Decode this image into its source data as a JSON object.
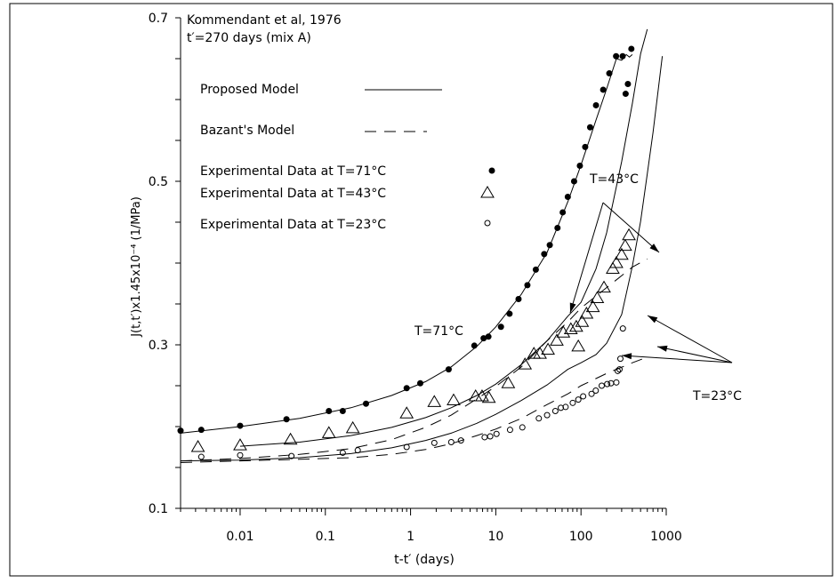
{
  "chart_data": {
    "type": "scatter",
    "title": "Kommendant et al, 1976",
    "subtitle": "t′=270 days (mix A)",
    "xlabel": "t-t′ (days)",
    "ylabel": "J(t,t′)x1.45x10⁻⁴ (1/MPa)",
    "x_scale": "log",
    "xlim": [
      0.002,
      1000
    ],
    "ylim": [
      0.1,
      0.7
    ],
    "x_ticks": [
      0.01,
      0.1,
      1,
      10,
      100,
      1000
    ],
    "x_tick_labels": [
      "0.01",
      "0.1",
      "1",
      "10",
      "100",
      "1000"
    ],
    "y_ticks": [
      0.1,
      0.3,
      0.5,
      0.7
    ],
    "y_tick_labels": [
      "0.1",
      "0.3",
      "0.5",
      "0.7"
    ],
    "grid": false,
    "legend": {
      "placement": "top-left",
      "entries": [
        {
          "label": "Proposed Model",
          "symbol": "solid-line"
        },
        {
          "label": "Bazant's Model",
          "symbol": "dashed-line"
        },
        {
          "label": "Experimental Data at T=71°C",
          "symbol": "filled-circle"
        },
        {
          "label": "Experimental Data at T=43°C",
          "symbol": "triangle"
        },
        {
          "label": "Experimental Data at T=23°C",
          "symbol": "open-circle"
        }
      ]
    },
    "annotations": [
      {
        "text": "T=71°C"
      },
      {
        "text": "T=43°C"
      },
      {
        "text": "T=23°C"
      }
    ],
    "series": [
      {
        "name": "Experimental Data at T=71°C",
        "marker": "filled-circle",
        "x": [
          0.002,
          0.0035,
          0.01,
          0.035,
          0.11,
          0.16,
          0.3,
          0.9,
          1.3,
          2.8,
          5.6,
          7.2,
          8.2,
          11.5,
          14.5,
          18.5,
          23.5,
          29.5,
          37,
          43,
          53,
          61,
          70,
          83,
          97,
          112,
          128,
          150,
          182,
          215,
          258,
          308,
          334,
          355,
          390
        ],
        "y": [
          0.195,
          0.196,
          0.201,
          0.209,
          0.219,
          0.219,
          0.228,
          0.247,
          0.253,
          0.27,
          0.299,
          0.308,
          0.31,
          0.322,
          0.338,
          0.356,
          0.373,
          0.392,
          0.411,
          0.422,
          0.443,
          0.462,
          0.481,
          0.5,
          0.519,
          0.542,
          0.566,
          0.593,
          0.612,
          0.632,
          0.653,
          0.653,
          0.607,
          0.619,
          0.662
        ]
      },
      {
        "name": "Experimental Data at T=43°C",
        "marker": "triangle",
        "x": [
          0.0032,
          0.01,
          0.039,
          0.11,
          0.21,
          0.9,
          1.9,
          3.2,
          5.8,
          6.9,
          8.3,
          14,
          22,
          28,
          33,
          41,
          52,
          62,
          76,
          88,
          93,
          103,
          116,
          138,
          155,
          186,
          236,
          260,
          300,
          330,
          365
        ],
        "y": [
          0.175,
          0.177,
          0.184,
          0.192,
          0.198,
          0.216,
          0.23,
          0.232,
          0.237,
          0.237,
          0.235,
          0.253,
          0.276,
          0.289,
          0.289,
          0.294,
          0.305,
          0.315,
          0.319,
          0.322,
          0.298,
          0.328,
          0.338,
          0.346,
          0.357,
          0.37,
          0.393,
          0.4,
          0.41,
          0.421,
          0.434
        ]
      },
      {
        "name": "Experimental Data at T=23°C",
        "marker": "open-circle",
        "x": [
          0.0035,
          0.01,
          0.04,
          0.16,
          0.24,
          0.9,
          1.9,
          3.0,
          3.9,
          7.4,
          8.6,
          10.2,
          14.7,
          20.5,
          32,
          40,
          50,
          58,
          66,
          80,
          93,
          106,
          133,
          149,
          175,
          203,
          225,
          260,
          270,
          283,
          290,
          310
        ],
        "y": [
          0.163,
          0.165,
          0.164,
          0.168,
          0.171,
          0.175,
          0.18,
          0.181,
          0.183,
          0.187,
          0.188,
          0.191,
          0.196,
          0.199,
          0.21,
          0.214,
          0.219,
          0.223,
          0.224,
          0.229,
          0.233,
          0.237,
          0.24,
          0.244,
          0.25,
          0.252,
          0.253,
          0.254,
          0.268,
          0.27,
          0.283,
          0.32
        ]
      },
      {
        "name": "Proposed Model",
        "line": "solid",
        "temperature": "71°C",
        "x": [
          0.002,
          0.01,
          0.05,
          0.2,
          0.6,
          1.5,
          3,
          6,
          10,
          20,
          40,
          70,
          100,
          150,
          200,
          260,
          300,
          340,
          370,
          400
        ],
        "y": [
          0.192,
          0.2,
          0.21,
          0.223,
          0.238,
          0.255,
          0.273,
          0.298,
          0.322,
          0.362,
          0.413,
          0.475,
          0.52,
          0.575,
          0.613,
          0.65,
          0.648,
          0.655,
          0.652,
          0.655
        ]
      },
      {
        "name": "Proposed Model",
        "line": "solid",
        "temperature": "43°C",
        "x": [
          0.01,
          0.05,
          0.2,
          0.6,
          1.5,
          3,
          6,
          10,
          20,
          40,
          70,
          100,
          150,
          200,
          300,
          400,
          500,
          600
        ],
        "y": [
          0.176,
          0.181,
          0.189,
          0.199,
          0.211,
          0.223,
          0.238,
          0.252,
          0.276,
          0.305,
          0.335,
          0.352,
          0.393,
          0.437,
          0.524,
          0.595,
          0.656,
          0.686
        ]
      },
      {
        "name": "Proposed Model",
        "line": "solid",
        "temperature": "23°C",
        "x": [
          0.002,
          0.01,
          0.05,
          0.2,
          0.6,
          1.5,
          3,
          6,
          10,
          20,
          40,
          70,
          100,
          150,
          200,
          300,
          400,
          500,
          600,
          700,
          900
        ],
        "y": [
          0.158,
          0.159,
          0.162,
          0.167,
          0.174,
          0.183,
          0.192,
          0.204,
          0.215,
          0.232,
          0.251,
          0.27,
          0.278,
          0.288,
          0.302,
          0.337,
          0.396,
          0.451,
          0.509,
          0.56,
          0.653
        ]
      },
      {
        "name": "Bazant's Model",
        "line": "dashed",
        "temperature": "43°C",
        "x": [
          0.002,
          0.01,
          0.05,
          0.2,
          0.6,
          1.5,
          3,
          6,
          10,
          20,
          40,
          70,
          100,
          200,
          400,
          600
        ],
        "y": [
          0.158,
          0.161,
          0.166,
          0.173,
          0.184,
          0.199,
          0.214,
          0.234,
          0.249,
          0.273,
          0.305,
          0.328,
          0.345,
          0.37,
          0.395,
          0.405
        ]
      },
      {
        "name": "Bazant's Model",
        "line": "dashed",
        "temperature": "23°C",
        "x": [
          0.002,
          0.01,
          0.05,
          0.2,
          0.6,
          1.5,
          3,
          6,
          10,
          20,
          40,
          70,
          100,
          200,
          400,
          600
        ],
        "y": [
          0.156,
          0.158,
          0.16,
          0.162,
          0.166,
          0.172,
          0.179,
          0.189,
          0.197,
          0.21,
          0.227,
          0.24,
          0.25,
          0.265,
          0.278,
          0.285
        ]
      }
    ]
  }
}
